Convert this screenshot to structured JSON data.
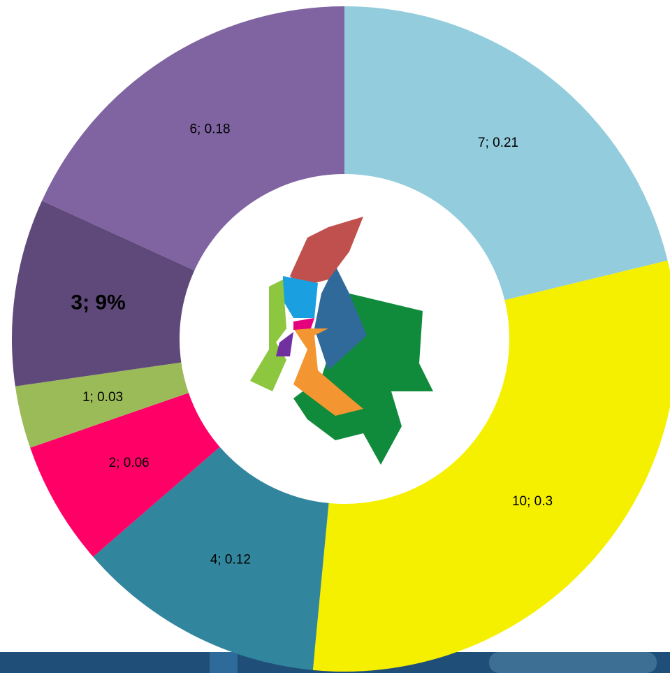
{
  "chart_data": {
    "type": "donut",
    "values": [
      7,
      10,
      4,
      2,
      1,
      3,
      6
    ],
    "value_labels": [
      "7; 0.21",
      "10; 0.3",
      "4; 0.12",
      "2; 0.06",
      "1; 0.03",
      "3; 9%",
      "6; 0.18"
    ],
    "colors": [
      "#93cddd",
      "#f5ef00",
      "#31859c",
      "#ff0066",
      "#9bbb59",
      "#5f497a",
      "#7f64a1"
    ]
  }
}
